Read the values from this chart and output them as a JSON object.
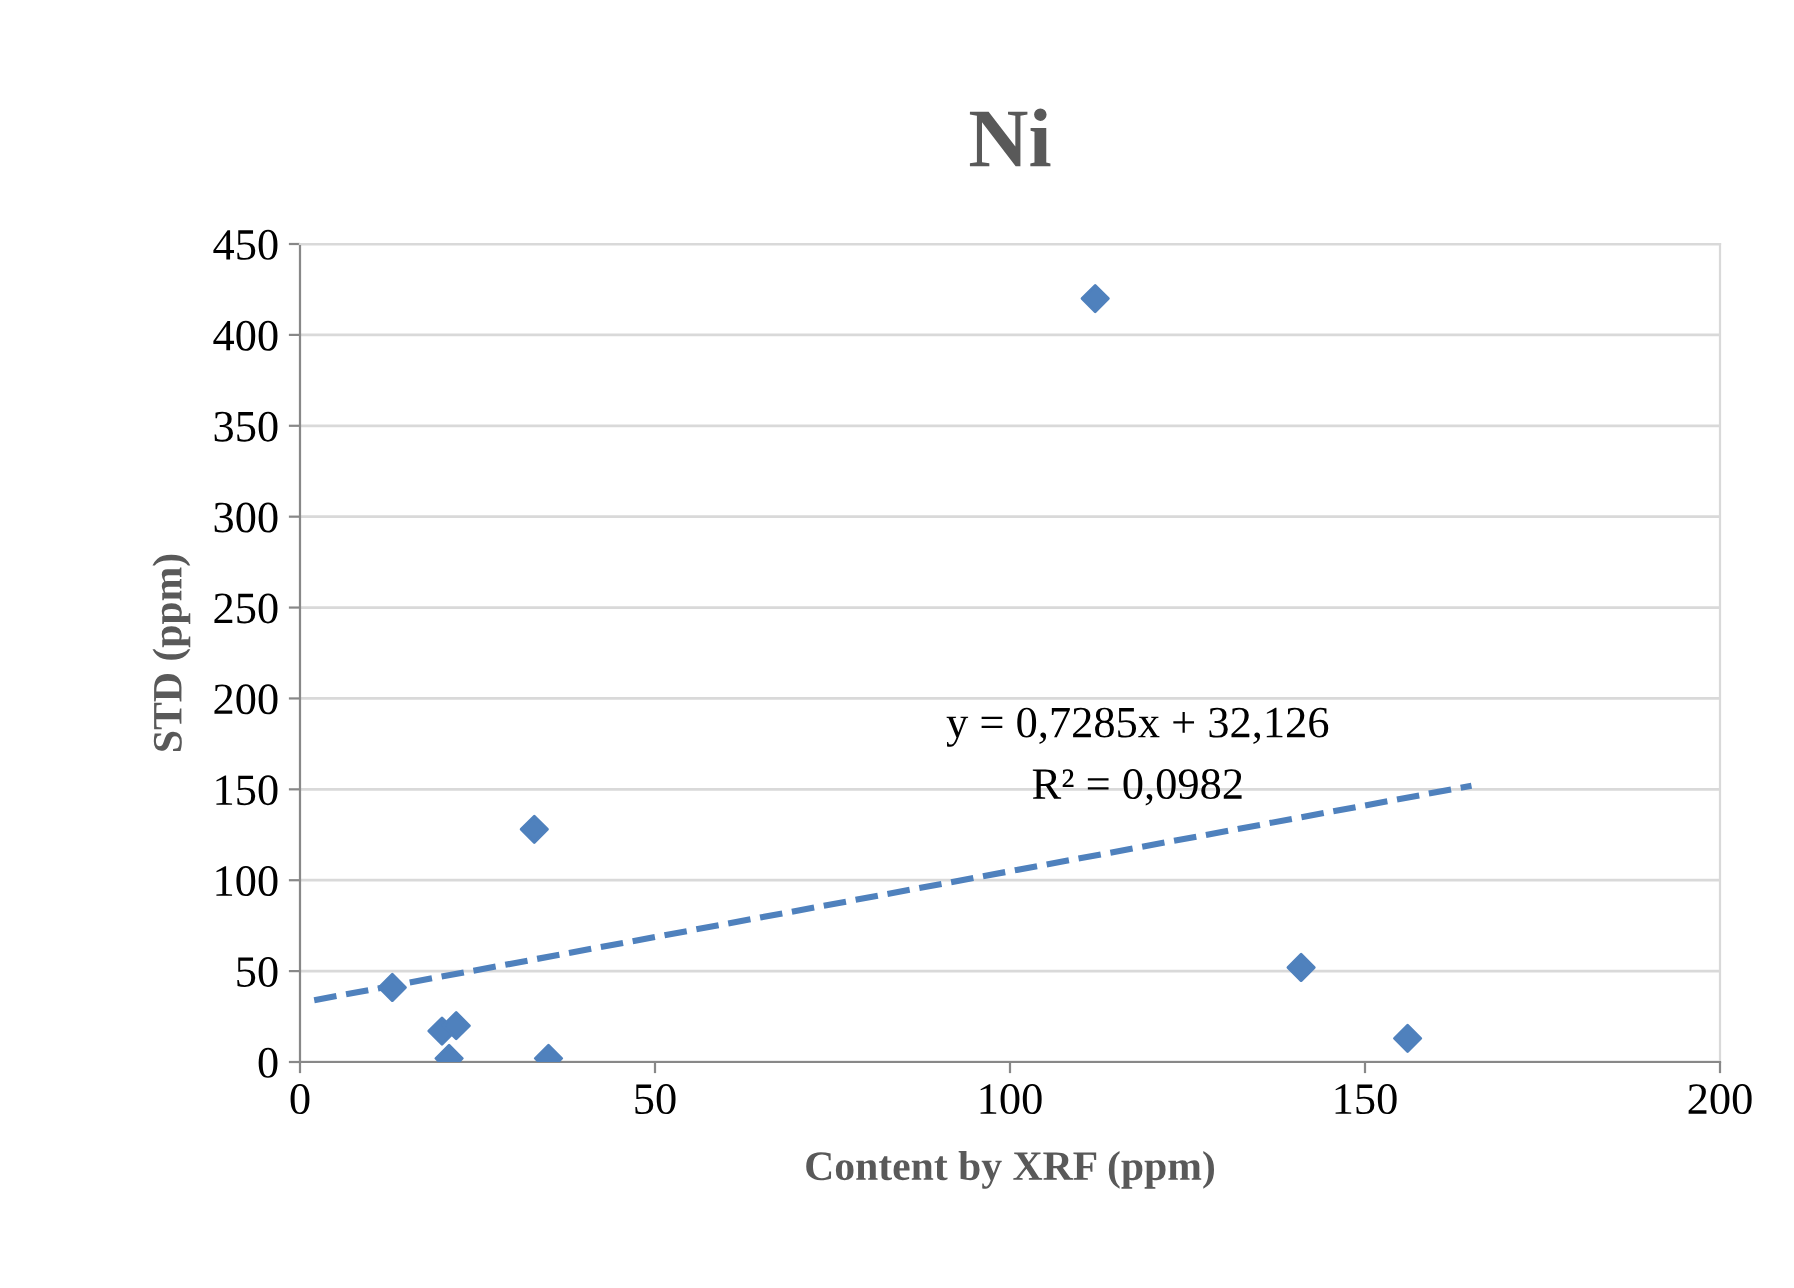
{
  "chart_data": {
    "type": "scatter",
    "title": "Ni",
    "xlabel": "Content by XRF (ppm)",
    "ylabel": "STD (ppm)",
    "xlim": [
      0,
      200
    ],
    "xticks": [
      0,
      50,
      100,
      150,
      200
    ],
    "ylim": [
      0,
      450
    ],
    "yticks": [
      0,
      50,
      100,
      150,
      200,
      250,
      300,
      350,
      400,
      450
    ],
    "grid": "y",
    "legend": false,
    "marker": "diamond",
    "series": [
      {
        "color": "#4f81bd",
        "x": [
          13,
          20,
          21,
          22,
          33,
          35,
          112,
          141,
          156
        ],
        "values": [
          41,
          17,
          2,
          20,
          128,
          2,
          420,
          52,
          13
        ]
      },
      {
        "type": "line",
        "color": "#4f81bd",
        "line_style": "dashed",
        "marker": "none",
        "x": [
          2,
          165
        ],
        "values": [
          34,
          152
        ]
      }
    ],
    "annotations": [
      "y = 0,7285x + 32,126",
      "R² = 0,0982"
    ]
  }
}
